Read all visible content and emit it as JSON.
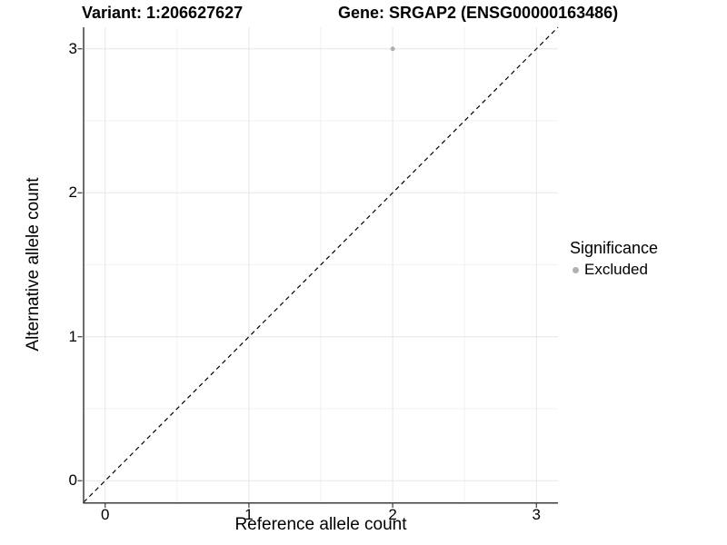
{
  "chart_data": {
    "type": "scatter",
    "title_left": "Variant: 1:206627627",
    "title_right": "Gene: SRGAP2 (ENSG00000163486)",
    "xlabel": "Reference allele count",
    "ylabel": "Alternative allele count",
    "xlim": [
      -0.15,
      3.15
    ],
    "ylim": [
      -0.15,
      3.15
    ],
    "x_ticks": [
      0,
      1,
      2,
      3
    ],
    "y_ticks": [
      0,
      1,
      2,
      3
    ],
    "grid": "major+minor",
    "minor_grid_at": [
      0.5,
      1.5,
      2.5
    ],
    "legend_position": "right",
    "series": [
      {
        "name": "Excluded",
        "color": "#b0b0b0",
        "points": [
          {
            "x": 2,
            "y": 3
          }
        ]
      }
    ],
    "reference_line": {
      "type": "identity y=x",
      "style": "dashed",
      "color": "#000000"
    }
  },
  "legend": {
    "title": "Significance",
    "items": [
      {
        "label": "Excluded",
        "color": "#b0b0b0"
      }
    ]
  },
  "colors": {
    "background": "#ffffff",
    "grid_major": "#e6e6e6",
    "grid_minor": "#f2f2f2",
    "axis_line": "#3d3d3d",
    "tick_mark": "#3d3d3d",
    "text": "#000000",
    "point": "#b0b0b0"
  }
}
